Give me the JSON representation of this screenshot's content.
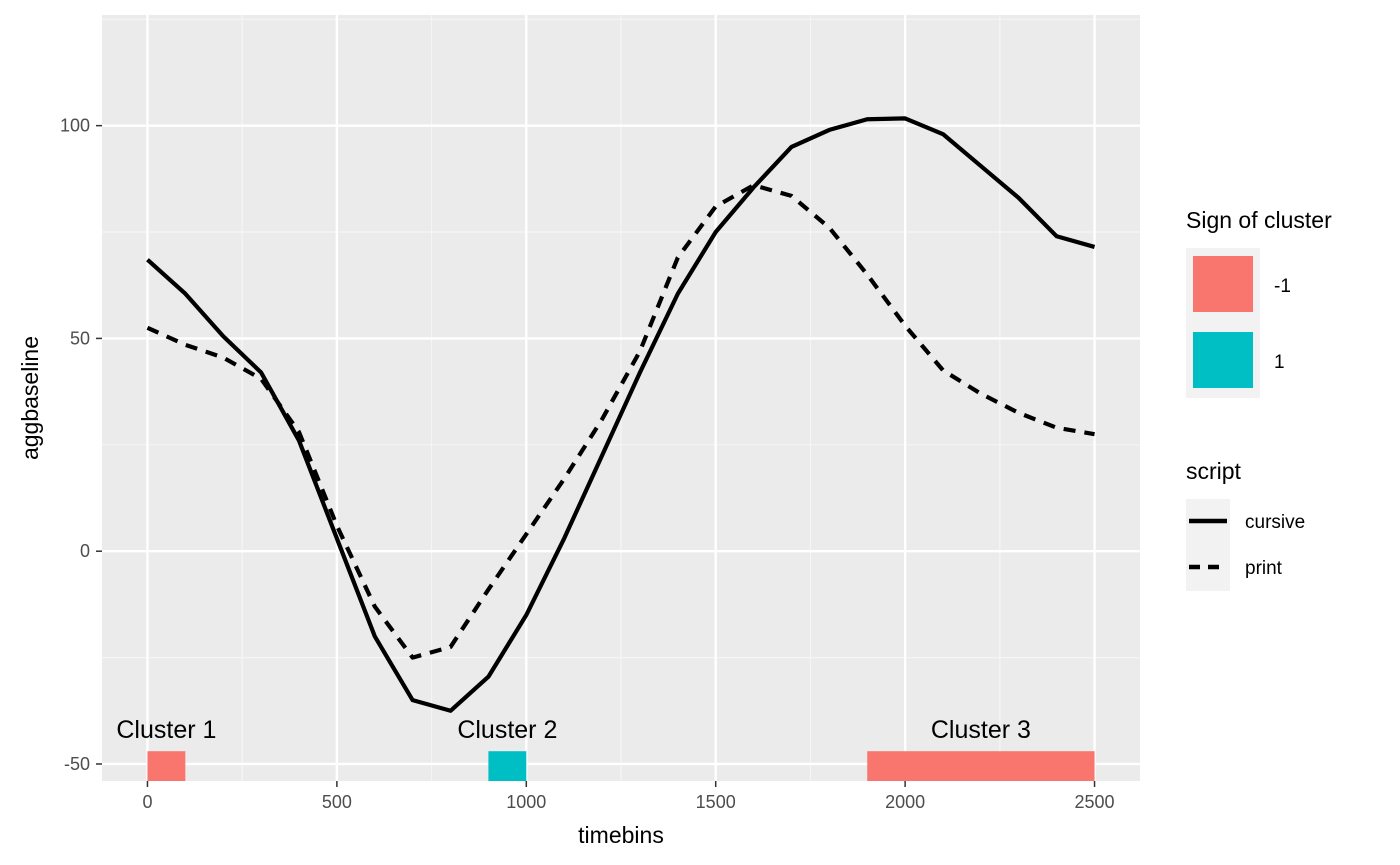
{
  "chart_data": {
    "type": "line",
    "xlabel": "timebins",
    "ylabel": "aggbaseline",
    "xlim": [
      -120,
      2620
    ],
    "ylim": [
      -54,
      126
    ],
    "x_ticks": [
      0,
      500,
      1000,
      1500,
      2000,
      2500
    ],
    "x_tick_labels": [
      "0",
      "500",
      "1000",
      "1500",
      "2000",
      "2500"
    ],
    "y_ticks": [
      -50,
      0,
      50,
      100
    ],
    "y_tick_labels": [
      "-50",
      "0",
      "50",
      "100"
    ],
    "grid": true,
    "series": [
      {
        "name": "cursive",
        "line_style": "solid",
        "color": "#000000",
        "x": [
          0,
          100,
          200,
          300,
          400,
          500,
          600,
          700,
          800,
          900,
          1000,
          1100,
          1200,
          1300,
          1400,
          1500,
          1600,
          1700,
          1800,
          1900,
          2000,
          2100,
          2200,
          2300,
          2400,
          2500
        ],
        "y": [
          68.5,
          60.5,
          50.5,
          42,
          26,
          3,
          -20,
          -35,
          -37.5,
          -29.5,
          -15,
          3,
          22.5,
          42,
          60.5,
          75,
          85.5,
          95,
          99,
          101.5,
          101.7,
          98,
          90.5,
          83,
          74,
          71.5
        ]
      },
      {
        "name": "print",
        "line_style": "dashed",
        "color": "#000000",
        "x": [
          0,
          100,
          200,
          300,
          400,
          500,
          600,
          700,
          800,
          900,
          1000,
          1100,
          1200,
          1300,
          1400,
          1500,
          1600,
          1700,
          1800,
          1900,
          2000,
          2100,
          2200,
          2300,
          2400,
          2500
        ],
        "y": [
          52.5,
          48.5,
          45.5,
          40.5,
          28,
          6,
          -13,
          -25,
          -22.5,
          -9,
          4,
          17,
          31,
          47,
          69,
          81,
          86,
          83.5,
          76,
          65,
          53,
          42.5,
          37,
          32.5,
          29,
          27.5
        ]
      }
    ],
    "clusters": [
      {
        "label": "Cluster 1",
        "x_start": 0,
        "x_end": 100,
        "sign": "-1"
      },
      {
        "label": "Cluster 2",
        "x_start": 900,
        "x_end": 1000,
        "sign": "1"
      },
      {
        "label": "Cluster 3",
        "x_start": 1900,
        "x_end": 2500,
        "sign": "-1"
      }
    ],
    "cluster_bar_y": [
      -54,
      -47
    ],
    "legends": {
      "fill": {
        "title": "Sign of cluster",
        "entries": [
          {
            "label": "-1",
            "color": "#F8766D"
          },
          {
            "label": "1",
            "color": "#00BFC4"
          }
        ]
      },
      "linetype": {
        "title": "script",
        "entries": [
          {
            "label": "cursive",
            "line_style": "solid"
          },
          {
            "label": "print",
            "line_style": "dashed"
          }
        ]
      }
    },
    "legend_position": "right",
    "colors": {
      "panel_bg": "#EBEBEB",
      "grid_major": "#FFFFFF",
      "grid_minor": "#F5F5F5",
      "sign_neg": "#F8766D",
      "sign_pos": "#00BFC4"
    }
  }
}
